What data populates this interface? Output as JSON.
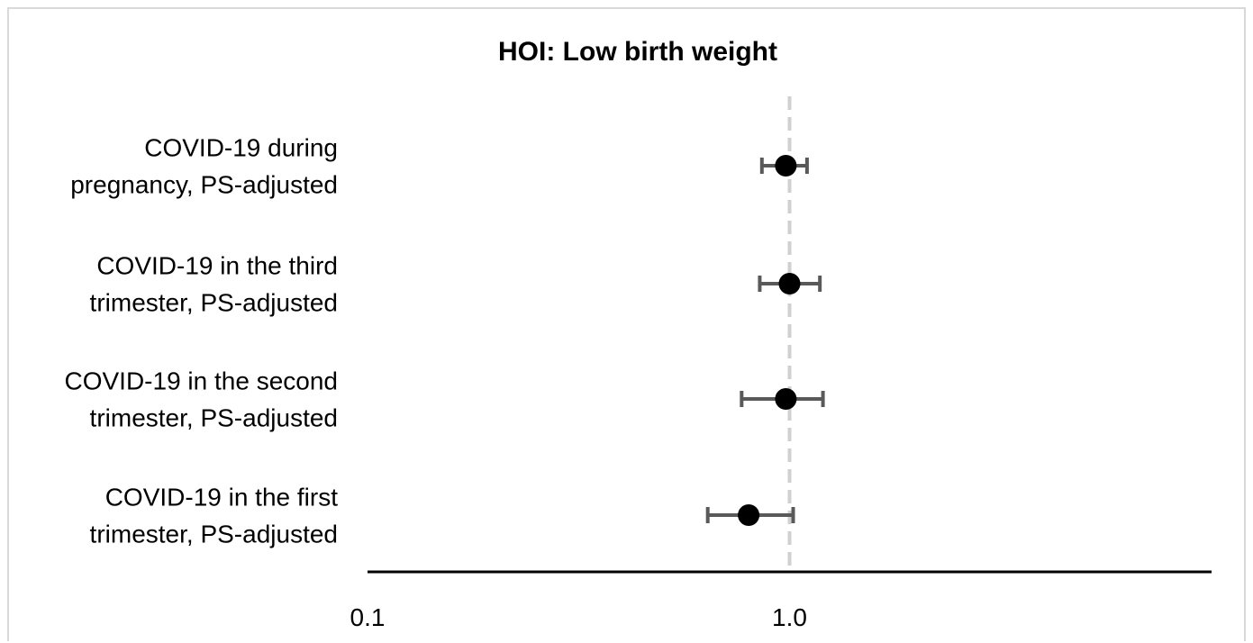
{
  "chart_data": {
    "type": "scatter",
    "subtype": "forest-plot",
    "title": "HOI: Low birth weight",
    "xlabel": "",
    "ylabel": "",
    "x_scale": "log",
    "xlim": [
      0.1,
      10.0
    ],
    "x_ticks": [
      0.1,
      1.0
    ],
    "x_tick_labels": [
      "0.1",
      "1.0"
    ],
    "reference_line": 1.0,
    "grid": false,
    "categories": [
      [
        "COVID-19 during",
        "pregnancy, PS-adjusted"
      ],
      [
        "COVID-19 in the third",
        "trimester, PS-adjusted"
      ],
      [
        "COVID-19 in the second",
        "trimester, PS-adjusted"
      ],
      [
        "COVID-19 in the first",
        "trimester, PS-adjusted"
      ]
    ],
    "estimates": [
      0.98,
      1.0,
      0.98,
      0.8
    ],
    "ci_lower": [
      0.86,
      0.85,
      0.77,
      0.64
    ],
    "ci_upper": [
      1.1,
      1.18,
      1.2,
      1.02
    ],
    "colors": {
      "point": "#000000",
      "error_bar": "#595959",
      "reference_line": "#d0d0d0",
      "axis": "#000000"
    }
  }
}
